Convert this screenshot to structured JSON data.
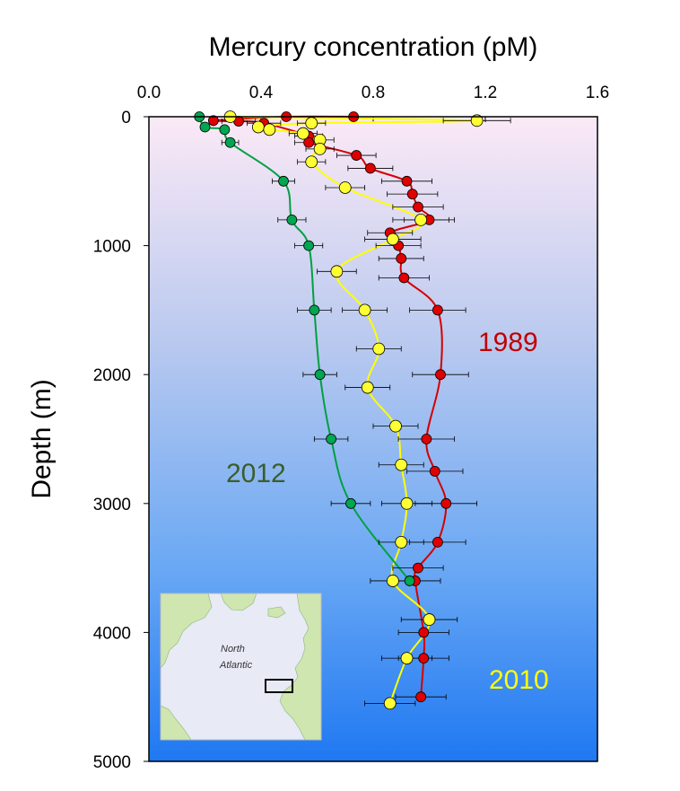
{
  "chart_data": {
    "type": "scatter",
    "xlabel": "Mercury concentration (pM)",
    "ylabel": "Depth (m)",
    "xlim": [
      0,
      1.6
    ],
    "ylim": [
      0,
      5000
    ],
    "x_axis_position": "top",
    "y_axis_inverted": true,
    "x_ticks": [
      "0.0",
      "0.4",
      "0.8",
      "1.2",
      "1.6"
    ],
    "y_ticks": [
      "0",
      "1000",
      "2000",
      "3000",
      "4000",
      "5000"
    ],
    "grid": false,
    "background": "gradient-pink-to-blue",
    "series": [
      {
        "name": "1989",
        "color": "#d40000",
        "marker_color": "#e00000",
        "points": [
          {
            "x": 0.73,
            "y": 0
          },
          {
            "x": 0.49,
            "y": 0
          },
          {
            "x": 0.23,
            "y": 30
          },
          {
            "x": 0.32,
            "y": 35
          },
          {
            "x": 0.41,
            "y": 50
          },
          {
            "x": 0.57,
            "y": 150
          },
          {
            "x": 0.57,
            "y": 200
          },
          {
            "x": 0.74,
            "y": 300
          },
          {
            "x": 0.79,
            "y": 400
          },
          {
            "x": 0.92,
            "y": 500
          },
          {
            "x": 0.94,
            "y": 600
          },
          {
            "x": 0.96,
            "y": 700
          },
          {
            "x": 1.0,
            "y": 800
          },
          {
            "x": 0.86,
            "y": 900
          },
          {
            "x": 0.89,
            "y": 1000
          },
          {
            "x": 0.9,
            "y": 1100
          },
          {
            "x": 0.91,
            "y": 1250
          },
          {
            "x": 1.03,
            "y": 1500
          },
          {
            "x": 1.04,
            "y": 2000
          },
          {
            "x": 0.99,
            "y": 2500
          },
          {
            "x": 1.02,
            "y": 2750
          },
          {
            "x": 1.06,
            "y": 3000
          },
          {
            "x": 1.03,
            "y": 3300
          },
          {
            "x": 0.96,
            "y": 3500
          },
          {
            "x": 0.95,
            "y": 3600
          },
          {
            "x": 0.98,
            "y": 4000
          },
          {
            "x": 0.98,
            "y": 4200
          },
          {
            "x": 0.97,
            "y": 4500
          }
        ],
        "xerr": [
          0,
          0,
          0,
          0.06,
          0.06,
          0.05,
          0.05,
          0.07,
          0.08,
          0.09,
          0.09,
          0.09,
          0.09,
          0.08,
          0.08,
          0.08,
          0.09,
          0.1,
          0.1,
          0.1,
          0.1,
          0.11,
          0.1,
          0.09,
          0.09,
          0.09,
          0.09,
          0.09
        ]
      },
      {
        "name": "2010",
        "color": "#ffff00",
        "marker_color": "#ffff33",
        "points": [
          {
            "x": 0.29,
            "y": 0
          },
          {
            "x": 1.17,
            "y": 30
          },
          {
            "x": 0.58,
            "y": 50
          },
          {
            "x": 0.39,
            "y": 80
          },
          {
            "x": 0.43,
            "y": 100
          },
          {
            "x": 0.55,
            "y": 130
          },
          {
            "x": 0.61,
            "y": 180
          },
          {
            "x": 0.61,
            "y": 250
          },
          {
            "x": 0.58,
            "y": 350
          },
          {
            "x": 0.7,
            "y": 550
          },
          {
            "x": 0.97,
            "y": 800
          },
          {
            "x": 0.87,
            "y": 950
          },
          {
            "x": 0.67,
            "y": 1200
          },
          {
            "x": 0.77,
            "y": 1500
          },
          {
            "x": 0.82,
            "y": 1800
          },
          {
            "x": 0.78,
            "y": 2100
          },
          {
            "x": 0.88,
            "y": 2400
          },
          {
            "x": 0.9,
            "y": 2700
          },
          {
            "x": 0.92,
            "y": 3000
          },
          {
            "x": 0.9,
            "y": 3300
          },
          {
            "x": 0.87,
            "y": 3600
          },
          {
            "x": 1.0,
            "y": 3900
          },
          {
            "x": 0.92,
            "y": 4200
          },
          {
            "x": 0.86,
            "y": 4550
          }
        ],
        "xerr": [
          0,
          0.12,
          0.05,
          0,
          0,
          0.05,
          0.05,
          0.05,
          0.05,
          0.07,
          0.1,
          0.1,
          0.07,
          0.08,
          0.08,
          0.08,
          0.08,
          0.08,
          0.09,
          0.08,
          0.08,
          0.1,
          0.09,
          0.09
        ]
      },
      {
        "name": "2012",
        "color": "#00a040",
        "marker_color": "#00a651",
        "points": [
          {
            "x": 0.18,
            "y": 0
          },
          {
            "x": 0.2,
            "y": 80
          },
          {
            "x": 0.27,
            "y": 100
          },
          {
            "x": 0.29,
            "y": 200
          },
          {
            "x": 0.48,
            "y": 500
          },
          {
            "x": 0.51,
            "y": 800
          },
          {
            "x": 0.57,
            "y": 1000
          },
          {
            "x": 0.59,
            "y": 1500
          },
          {
            "x": 0.61,
            "y": 2000
          },
          {
            "x": 0.65,
            "y": 2500
          },
          {
            "x": 0.72,
            "y": 3000
          },
          {
            "x": 0.93,
            "y": 3600
          }
        ],
        "xerr": [
          0,
          0,
          0,
          0.03,
          0.04,
          0.05,
          0.05,
          0.06,
          0.06,
          0.06,
          0.07,
          0
        ]
      }
    ],
    "annotations": [
      {
        "text": "1989",
        "color": "#c00000"
      },
      {
        "text": "2010",
        "color": "#ffff00"
      },
      {
        "text": "2012",
        "color": "#3a5e28"
      }
    ],
    "inset_map": {
      "labels": [
        "North",
        "Atlantic"
      ],
      "land_color": "#cfe6b0",
      "water_color": "#e8eaf6"
    }
  }
}
